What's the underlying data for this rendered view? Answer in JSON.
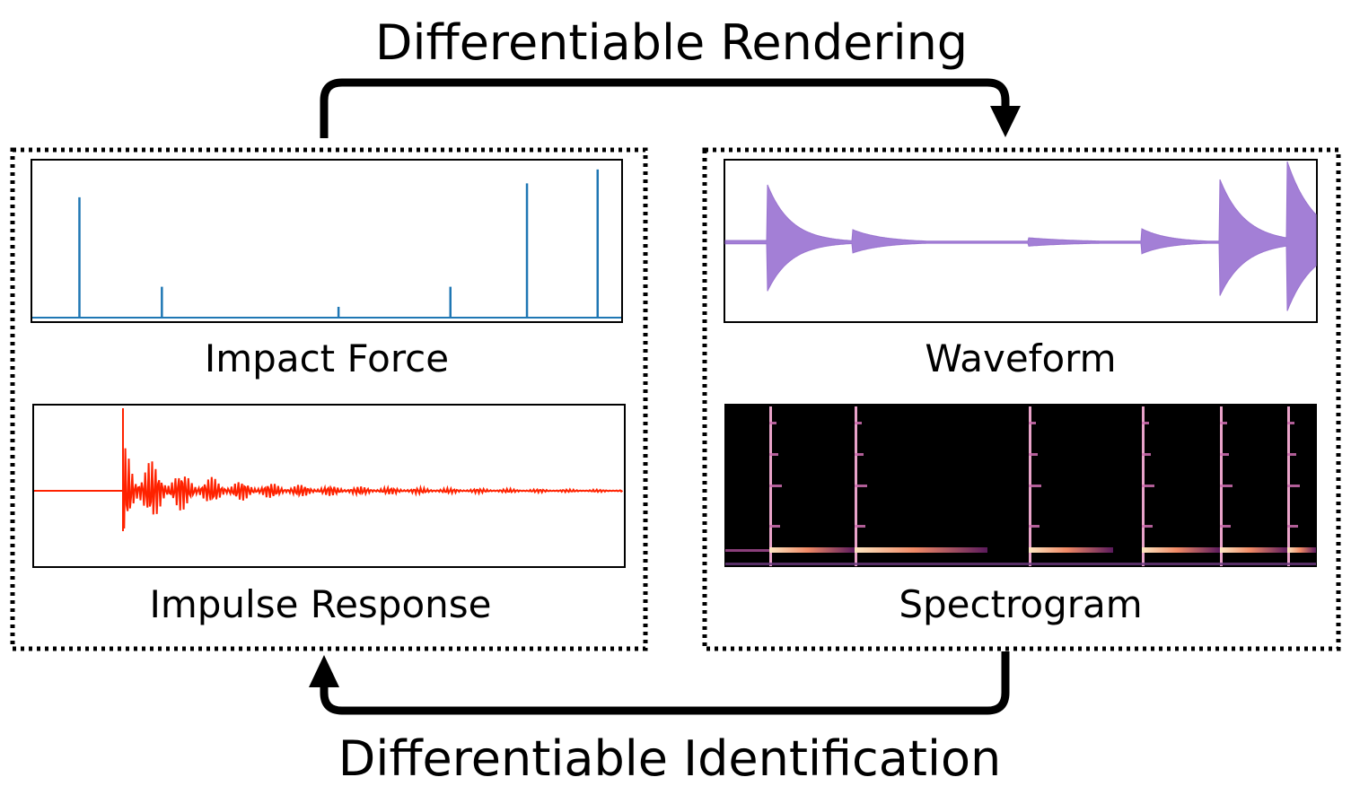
{
  "top_label": "Differentiable Rendering",
  "bottom_label": "Differentiable Identification",
  "left_group": {
    "panels": [
      {
        "label": "Impact Force",
        "color": "#1f77b4",
        "impulse_times": [
          0.08,
          0.22,
          0.52,
          0.71,
          0.84,
          0.96
        ],
        "impulse_amplitudes": [
          0.78,
          0.2,
          0.07,
          0.2,
          0.87,
          0.96
        ]
      },
      {
        "label": "Impulse Response",
        "color": "#ff2200"
      }
    ]
  },
  "right_group": {
    "panels": [
      {
        "label": "Waveform",
        "color": "#a37fd6"
      },
      {
        "label": "Spectrogram"
      }
    ]
  }
}
